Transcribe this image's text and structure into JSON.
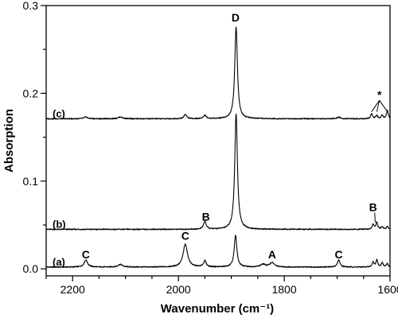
{
  "chart_data": {
    "type": "line",
    "xlabel": "Wavenumber (cm⁻¹)",
    "ylabel": "Absorption",
    "xlim": [
      2250,
      1600
    ],
    "ylim": [
      -0.008,
      0.3
    ],
    "x_reversed": true,
    "grid": false,
    "x_ticks": [
      2200,
      2000,
      1800,
      1600
    ],
    "x_tick_labels": [
      "2200",
      "2000",
      "1800",
      "1600"
    ],
    "y_ticks": [
      0.0,
      0.1,
      0.2,
      0.3
    ],
    "y_tick_labels": [
      "0.0",
      "0.1",
      "0.2",
      "0.3"
    ],
    "series": [
      {
        "label": "(a)",
        "baseline": 0.002,
        "peaks": [
          {
            "x": 2175,
            "height": 0.008,
            "width": 4
          },
          {
            "x": 2110,
            "height": 0.003,
            "width": 5
          },
          {
            "x": 1987,
            "height": 0.026,
            "width": 5
          },
          {
            "x": 1950,
            "height": 0.007,
            "width": 3
          },
          {
            "x": 1892,
            "height": 0.036,
            "width": 3
          },
          {
            "x": 1840,
            "height": 0.003,
            "width": 6
          },
          {
            "x": 1823,
            "height": 0.005,
            "width": 5
          },
          {
            "x": 1697,
            "height": 0.008,
            "width": 3
          },
          {
            "x": 1632,
            "height": 0.006,
            "width": 2
          },
          {
            "x": 1625,
            "height": 0.008,
            "width": 2
          },
          {
            "x": 1615,
            "height": 0.005,
            "width": 2
          },
          {
            "x": 1605,
            "height": 0.004,
            "width": 2
          }
        ]
      },
      {
        "label": "(b)",
        "baseline": 0.045,
        "peaks": [
          {
            "x": 1950,
            "height": 0.009,
            "width": 3
          },
          {
            "x": 1891,
            "height": 0.132,
            "width": 3
          },
          {
            "x": 1632,
            "height": 0.006,
            "width": 2
          },
          {
            "x": 1625,
            "height": 0.008,
            "width": 2
          },
          {
            "x": 1615,
            "height": 0.003,
            "width": 2
          },
          {
            "x": 1605,
            "height": 0.003,
            "width": 2
          }
        ]
      },
      {
        "label": "(c)",
        "baseline": 0.171,
        "peaks": [
          {
            "x": 2175,
            "height": 0.002,
            "width": 4
          },
          {
            "x": 2110,
            "height": 0.002,
            "width": 5
          },
          {
            "x": 1987,
            "height": 0.005,
            "width": 3
          },
          {
            "x": 1950,
            "height": 0.004,
            "width": 3
          },
          {
            "x": 1891,
            "height": 0.105,
            "width": 3
          },
          {
            "x": 1697,
            "height": 0.002,
            "width": 3
          },
          {
            "x": 1635,
            "height": 0.006,
            "width": 2
          },
          {
            "x": 1625,
            "height": 0.004,
            "width": 2
          },
          {
            "x": 1615,
            "height": 0.004,
            "width": 2
          },
          {
            "x": 1605,
            "height": 0.009,
            "width": 2
          }
        ]
      }
    ],
    "annotations": [
      {
        "text": "C",
        "x": 2175,
        "y": 0.012
      },
      {
        "text": "C",
        "x": 1987,
        "y": 0.033
      },
      {
        "text": "D",
        "x": 1892,
        "y": 0.282
      },
      {
        "text": "A",
        "x": 1823,
        "y": 0.012
      },
      {
        "text": "C",
        "x": 1697,
        "y": 0.012
      },
      {
        "text": "B",
        "x": 1948,
        "y": 0.055
      },
      {
        "text": "B",
        "x": 1632,
        "y": 0.066
      },
      {
        "text": "*",
        "x": 1620,
        "y": 0.194
      }
    ]
  }
}
